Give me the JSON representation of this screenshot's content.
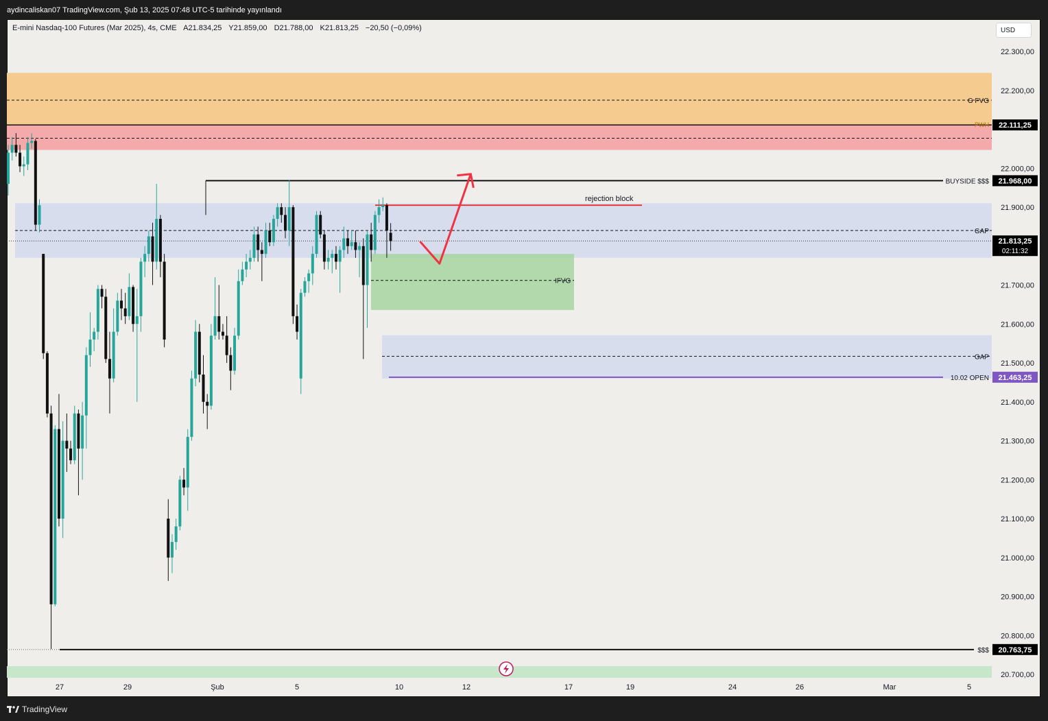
{
  "header": {
    "publisher": "aydincaliskan07 TradingView.com, Şub 13, 2025 07:48 UTC-5 tarihinde yayınlandı"
  },
  "legend": {
    "symbol": "E-mini Nasdaq-100 Futures (Mar 2025), 4s, CME",
    "open": "A21.834,25",
    "high": "Y21.859,00",
    "low": "D21.788,00",
    "close": "K21.813,25",
    "change": "−20,50 (−0,09%)"
  },
  "currency": "USD",
  "footer": {
    "brand": "TradingView"
  },
  "colors": {
    "up": "#26a69a",
    "down": "#111111",
    "gfvg_zone": "#f6cb8f",
    "pwh_zone": "#f4a9ab",
    "gap_zone": "#d3d9ee",
    "ifvg_zone": "#a6d5a0",
    "open_line": "#7e57c2",
    "rejection_line": "#e53935",
    "arrow": "#ef3345"
  },
  "chart_data": {
    "type": "candlestick",
    "ylim": [
      20680,
      22370
    ],
    "x_ticks": [
      "27",
      "29",
      "Şub",
      "5",
      "10",
      "12",
      "17",
      "19",
      "24",
      "26",
      "Mar",
      "5"
    ],
    "y_ticks": [
      "22.300,00",
      "22.200,00",
      "22.000,00",
      "21.900,00",
      "21.700,00",
      "21.600,00",
      "21.500,00",
      "21.400,00",
      "21.300,00",
      "21.200,00",
      "21.100,00",
      "21.000,00",
      "20.900,00",
      "20.800,00",
      "20.700,00"
    ],
    "candles": [
      {
        "o": 21960,
        "h": 22060,
        "l": 21930,
        "c": 22040
      },
      {
        "o": 22040,
        "h": 22080,
        "l": 22020,
        "c": 22060
      },
      {
        "o": 22060,
        "h": 22090,
        "l": 22030,
        "c": 22040
      },
      {
        "o": 22040,
        "h": 22060,
        "l": 21990,
        "c": 22005
      },
      {
        "o": 22005,
        "h": 22030,
        "l": 21980,
        "c": 22010
      },
      {
        "o": 22010,
        "h": 22080,
        "l": 21995,
        "c": 22065
      },
      {
        "o": 22065,
        "h": 22090,
        "l": 22050,
        "c": 22070
      },
      {
        "o": 22070,
        "h": 22075,
        "l": 21840,
        "c": 21855
      },
      {
        "o": 21855,
        "h": 21920,
        "l": 21835,
        "c": 21905
      },
      {
        "o": 21780,
        "h": 21780,
        "l": 21510,
        "c": 21525
      },
      {
        "o": 21525,
        "h": 21530,
        "l": 21360,
        "c": 21370
      },
      {
        "o": 21370,
        "h": 21390,
        "l": 20765,
        "c": 20880
      },
      {
        "o": 20880,
        "h": 21340,
        "l": 20875,
        "c": 21330
      },
      {
        "o": 21330,
        "h": 21420,
        "l": 21080,
        "c": 21100
      },
      {
        "o": 21100,
        "h": 21350,
        "l": 21050,
        "c": 21300
      },
      {
        "o": 21300,
        "h": 21370,
        "l": 21220,
        "c": 21280
      },
      {
        "o": 21280,
        "h": 21300,
        "l": 21240,
        "c": 21250
      },
      {
        "o": 21250,
        "h": 21390,
        "l": 21240,
        "c": 21370
      },
      {
        "o": 21370,
        "h": 21380,
        "l": 21160,
        "c": 21280
      },
      {
        "o": 21280,
        "h": 21400,
        "l": 21200,
        "c": 21365
      },
      {
        "o": 21365,
        "h": 21540,
        "l": 21280,
        "c": 21520
      },
      {
        "o": 21520,
        "h": 21630,
        "l": 21490,
        "c": 21560
      },
      {
        "o": 21560,
        "h": 21590,
        "l": 21530,
        "c": 21580
      },
      {
        "o": 21580,
        "h": 21700,
        "l": 21560,
        "c": 21690
      },
      {
        "o": 21690,
        "h": 21700,
        "l": 21640,
        "c": 21670
      },
      {
        "o": 21670,
        "h": 21690,
        "l": 21500,
        "c": 21510
      },
      {
        "o": 21510,
        "h": 21580,
        "l": 21370,
        "c": 21460
      },
      {
        "o": 21460,
        "h": 21640,
        "l": 21450,
        "c": 21580
      },
      {
        "o": 21580,
        "h": 21680,
        "l": 21570,
        "c": 21660
      },
      {
        "o": 21660,
        "h": 21690,
        "l": 21610,
        "c": 21640
      },
      {
        "o": 21640,
        "h": 21680,
        "l": 21600,
        "c": 21620
      },
      {
        "o": 21620,
        "h": 21730,
        "l": 21610,
        "c": 21695
      },
      {
        "o": 21695,
        "h": 21700,
        "l": 21580,
        "c": 21600
      },
      {
        "o": 21600,
        "h": 21690,
        "l": 21400,
        "c": 21620
      },
      {
        "o": 21620,
        "h": 21770,
        "l": 21580,
        "c": 21760
      },
      {
        "o": 21760,
        "h": 21800,
        "l": 21720,
        "c": 21780
      },
      {
        "o": 21780,
        "h": 21840,
        "l": 21760,
        "c": 21825
      },
      {
        "o": 21825,
        "h": 21860,
        "l": 21700,
        "c": 21760
      },
      {
        "o": 21760,
        "h": 21960,
        "l": 21740,
        "c": 21870
      },
      {
        "o": 21870,
        "h": 21880,
        "l": 21720,
        "c": 21760
      },
      {
        "o": 21760,
        "h": 21780,
        "l": 21540,
        "c": 21560
      },
      {
        "o": 21100,
        "h": 21150,
        "l": 20940,
        "c": 21000
      },
      {
        "o": 21000,
        "h": 21060,
        "l": 20960,
        "c": 21040
      },
      {
        "o": 21040,
        "h": 21100,
        "l": 21020,
        "c": 21080
      },
      {
        "o": 21080,
        "h": 21210,
        "l": 21070,
        "c": 21200
      },
      {
        "o": 21200,
        "h": 21230,
        "l": 21160,
        "c": 21180
      },
      {
        "o": 21180,
        "h": 21330,
        "l": 21120,
        "c": 21310
      },
      {
        "o": 21310,
        "h": 21480,
        "l": 21300,
        "c": 21460
      },
      {
        "o": 21460,
        "h": 21610,
        "l": 21440,
        "c": 21580
      },
      {
        "o": 21580,
        "h": 21600,
        "l": 21450,
        "c": 21470
      },
      {
        "o": 21470,
        "h": 21520,
        "l": 21370,
        "c": 21400
      },
      {
        "o": 21400,
        "h": 21420,
        "l": 21330,
        "c": 21390
      },
      {
        "o": 21390,
        "h": 21600,
        "l": 21380,
        "c": 21570
      },
      {
        "o": 21570,
        "h": 21720,
        "l": 21560,
        "c": 21620
      },
      {
        "o": 21620,
        "h": 21700,
        "l": 21560,
        "c": 21580
      },
      {
        "o": 21580,
        "h": 21600,
        "l": 21560,
        "c": 21570
      },
      {
        "o": 21570,
        "h": 21620,
        "l": 21500,
        "c": 21520
      },
      {
        "o": 21520,
        "h": 21540,
        "l": 21430,
        "c": 21480
      },
      {
        "o": 21480,
        "h": 21590,
        "l": 21470,
        "c": 21570
      },
      {
        "o": 21570,
        "h": 21740,
        "l": 21560,
        "c": 21710
      },
      {
        "o": 21710,
        "h": 21760,
        "l": 21700,
        "c": 21740
      },
      {
        "o": 21740,
        "h": 21780,
        "l": 21720,
        "c": 21760
      },
      {
        "o": 21760,
        "h": 21790,
        "l": 21740,
        "c": 21770
      },
      {
        "o": 21770,
        "h": 21850,
        "l": 21760,
        "c": 21830
      },
      {
        "o": 21830,
        "h": 21850,
        "l": 21760,
        "c": 21790
      },
      {
        "o": 21790,
        "h": 21810,
        "l": 21710,
        "c": 21780
      },
      {
        "o": 21780,
        "h": 21860,
        "l": 21770,
        "c": 21840
      },
      {
        "o": 21840,
        "h": 21860,
        "l": 21800,
        "c": 21810
      },
      {
        "o": 21810,
        "h": 21880,
        "l": 21800,
        "c": 21870
      },
      {
        "o": 21870,
        "h": 21910,
        "l": 21850,
        "c": 21900
      },
      {
        "o": 21900,
        "h": 21910,
        "l": 21860,
        "c": 21880
      },
      {
        "o": 21880,
        "h": 21900,
        "l": 21820,
        "c": 21840
      },
      {
        "o": 21840,
        "h": 21970,
        "l": 21800,
        "c": 21900
      },
      {
        "o": 21900,
        "h": 21905,
        "l": 21600,
        "c": 21620
      },
      {
        "o": 21620,
        "h": 21650,
        "l": 21560,
        "c": 21580
      },
      {
        "o": 21460,
        "h": 21690,
        "l": 21420,
        "c": 21680
      },
      {
        "o": 21680,
        "h": 21720,
        "l": 21670,
        "c": 21710
      },
      {
        "o": 21710,
        "h": 21740,
        "l": 21680,
        "c": 21730
      },
      {
        "o": 21730,
        "h": 21800,
        "l": 21700,
        "c": 21780
      },
      {
        "o": 21780,
        "h": 21890,
        "l": 21770,
        "c": 21880
      },
      {
        "o": 21880,
        "h": 21890,
        "l": 21820,
        "c": 21830
      },
      {
        "o": 21830,
        "h": 21840,
        "l": 21740,
        "c": 21760
      },
      {
        "o": 21760,
        "h": 21790,
        "l": 21740,
        "c": 21770
      },
      {
        "o": 21770,
        "h": 21790,
        "l": 21730,
        "c": 21780
      },
      {
        "o": 21780,
        "h": 21800,
        "l": 21740,
        "c": 21760
      },
      {
        "o": 21760,
        "h": 21800,
        "l": 21680,
        "c": 21790
      },
      {
        "o": 21790,
        "h": 21850,
        "l": 21770,
        "c": 21820
      },
      {
        "o": 21820,
        "h": 21840,
        "l": 21780,
        "c": 21800
      },
      {
        "o": 21800,
        "h": 21840,
        "l": 21790,
        "c": 21810
      },
      {
        "o": 21810,
        "h": 21840,
        "l": 21770,
        "c": 21790
      },
      {
        "o": 21790,
        "h": 21810,
        "l": 21720,
        "c": 21800
      },
      {
        "o": 21800,
        "h": 21820,
        "l": 21510,
        "c": 21700
      },
      {
        "o": 21700,
        "h": 21840,
        "l": 21590,
        "c": 21830
      },
      {
        "o": 21830,
        "h": 21860,
        "l": 21760,
        "c": 21790
      },
      {
        "o": 21790,
        "h": 21890,
        "l": 21780,
        "c": 21880
      },
      {
        "o": 21880,
        "h": 21920,
        "l": 21860,
        "c": 21900
      },
      {
        "o": 21900,
        "h": 21925,
        "l": 21890,
        "c": 21905
      },
      {
        "o": 21905,
        "h": 21910,
        "l": 21770,
        "c": 21840
      },
      {
        "o": 21834.25,
        "h": 21859,
        "l": 21788,
        "c": 21813.25
      }
    ],
    "zones": [
      {
        "label": "G FVG",
        "y_top": 22245,
        "y_bottom": 22111.25,
        "mid": 22175,
        "color": "#f6cb8f"
      },
      {
        "label": "PWH zone",
        "y_top": 22111.25,
        "y_bottom": 22047,
        "mid": 22077,
        "color": "#f4a9ab"
      },
      {
        "label": "GAP",
        "y_top": 21910,
        "y_bottom": 21770,
        "mid": 21840,
        "color": "#d3d9ee"
      },
      {
        "label": "IFVG",
        "y_top": 21780,
        "y_bottom": 21636,
        "mid": 21712,
        "color": "#a6d5a0"
      },
      {
        "label": "GAP",
        "y_top": 21571,
        "y_bottom": 21460,
        "mid": 21517,
        "color": "#d3d9ee"
      }
    ],
    "levels": [
      {
        "label": "PWH",
        "price": "22.111,25",
        "value": 22111.25
      },
      {
        "label": "BUYSIDE $$$",
        "price": "21.968,00",
        "value": 21968
      },
      {
        "label": "10.02 OPEN",
        "price": "21.463,25",
        "value": 21463.25
      },
      {
        "label": "$$$",
        "price": "20.763,75",
        "value": 20763.75
      }
    ],
    "annotations": {
      "rejection_block": "rejection block",
      "gfvg": "G FVG",
      "gap_upper": "GAP",
      "gap_lower": "GAP",
      "ifvg": "IFVG"
    },
    "last_price": {
      "price": "21.813,25",
      "countdown": "02:11:32",
      "value": 21813.25
    },
    "projection": [
      {
        "date_index": 102,
        "price": 21812
      },
      {
        "date_index": 107,
        "price": 21755
      },
      {
        "date_index": 115,
        "price": 21985
      }
    ]
  }
}
